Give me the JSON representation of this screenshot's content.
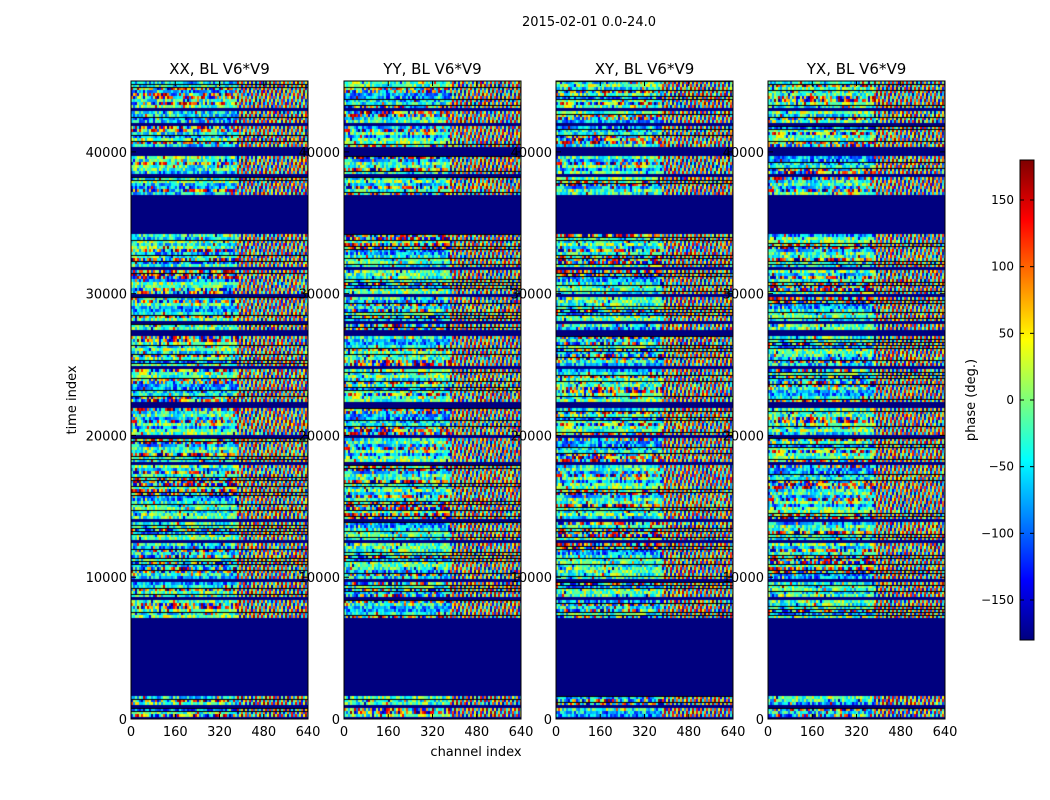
{
  "figure": {
    "suptitle": "2015-02-01 0.0-24.0",
    "xlabel": "channel index",
    "ylabel": "time index"
  },
  "colorbar": {
    "label": "phase (deg.)",
    "range": [
      -180,
      180
    ],
    "ticks": [
      -150,
      -100,
      -50,
      0,
      50,
      100,
      150
    ],
    "tick_labels": [
      "−150",
      "−100",
      "−50",
      "0",
      "50",
      "100",
      "150"
    ],
    "colormap_stops": [
      "#00007f",
      "#0000ff",
      "#0080ff",
      "#00ffff",
      "#7dff7a",
      "#ffff00",
      "#ff8000",
      "#ff0000",
      "#7f0000"
    ]
  },
  "chart_data": [
    {
      "type": "heatmap",
      "title": "XX, BL V6*V9",
      "xlabel": "channel index",
      "ylabel": "time index",
      "xlim": [
        0,
        640
      ],
      "ylim": [
        0,
        45000
      ],
      "x_ticks": [
        0,
        160,
        320,
        480,
        640
      ],
      "y_ticks": [
        0,
        10000,
        20000,
        30000,
        40000
      ],
      "x_tick_labels": [
        "0",
        "160",
        "320",
        "480",
        "640"
      ],
      "y_tick_labels": [
        "0",
        "10000",
        "20000",
        "30000",
        "40000"
      ],
      "value_label": "phase (deg.)",
      "value_range": [
        -180,
        180
      ]
    },
    {
      "type": "heatmap",
      "title": "YY, BL V6*V9",
      "xlabel": "channel index",
      "ylabel": "time index",
      "xlim": [
        0,
        640
      ],
      "ylim": [
        0,
        45000
      ],
      "x_ticks": [
        0,
        160,
        320,
        480,
        640
      ],
      "y_ticks": [
        0,
        10000,
        20000,
        30000,
        40000
      ],
      "x_tick_labels": [
        "0",
        "160",
        "320",
        "480",
        "640"
      ],
      "y_tick_labels": [
        "0",
        "10000",
        "20000",
        "30000",
        "40000"
      ],
      "value_label": "phase (deg.)",
      "value_range": [
        -180,
        180
      ]
    },
    {
      "type": "heatmap",
      "title": "XY, BL V6*V9",
      "xlabel": "channel index",
      "ylabel": "time index",
      "xlim": [
        0,
        640
      ],
      "ylim": [
        0,
        45000
      ],
      "x_ticks": [
        0,
        160,
        320,
        480,
        640
      ],
      "y_ticks": [
        0,
        10000,
        20000,
        30000,
        40000
      ],
      "x_tick_labels": [
        "0",
        "160",
        "320",
        "480",
        "640"
      ],
      "y_tick_labels": [
        "0",
        "10000",
        "20000",
        "30000",
        "40000"
      ],
      "value_label": "phase (deg.)",
      "value_range": [
        -180,
        180
      ]
    },
    {
      "type": "heatmap",
      "title": "YX, BL V6*V9",
      "xlabel": "channel index",
      "ylabel": "time index",
      "xlim": [
        0,
        640
      ],
      "ylim": [
        0,
        45000
      ],
      "x_ticks": [
        0,
        160,
        320,
        480,
        640
      ],
      "y_ticks": [
        0,
        10000,
        20000,
        30000,
        40000
      ],
      "x_tick_labels": [
        "0",
        "160",
        "320",
        "480",
        "640"
      ],
      "y_tick_labels": [
        "0",
        "10000",
        "20000",
        "30000",
        "40000"
      ],
      "value_label": "phase (deg.)",
      "value_range": [
        -180,
        180
      ]
    }
  ],
  "flagged_time_ranges": [
    [
      0,
      300
    ],
    [
      900,
      1100
    ],
    [
      1700,
      7200
    ],
    [
      8400,
      8700
    ],
    [
      9800,
      10000
    ],
    [
      12500,
      12700
    ],
    [
      14000,
      14200
    ],
    [
      18000,
      18200
    ],
    [
      20000,
      20200
    ],
    [
      22100,
      22400
    ],
    [
      24800,
      25000
    ],
    [
      27200,
      27500
    ],
    [
      28000,
      28200
    ],
    [
      29800,
      30000
    ],
    [
      31800,
      32000
    ],
    [
      34400,
      34600
    ],
    [
      34600,
      37000
    ],
    [
      38300,
      38500
    ],
    [
      39800,
      40200
    ],
    [
      40200,
      40400
    ],
    [
      42000,
      42200
    ],
    [
      43000,
      43200
    ]
  ]
}
